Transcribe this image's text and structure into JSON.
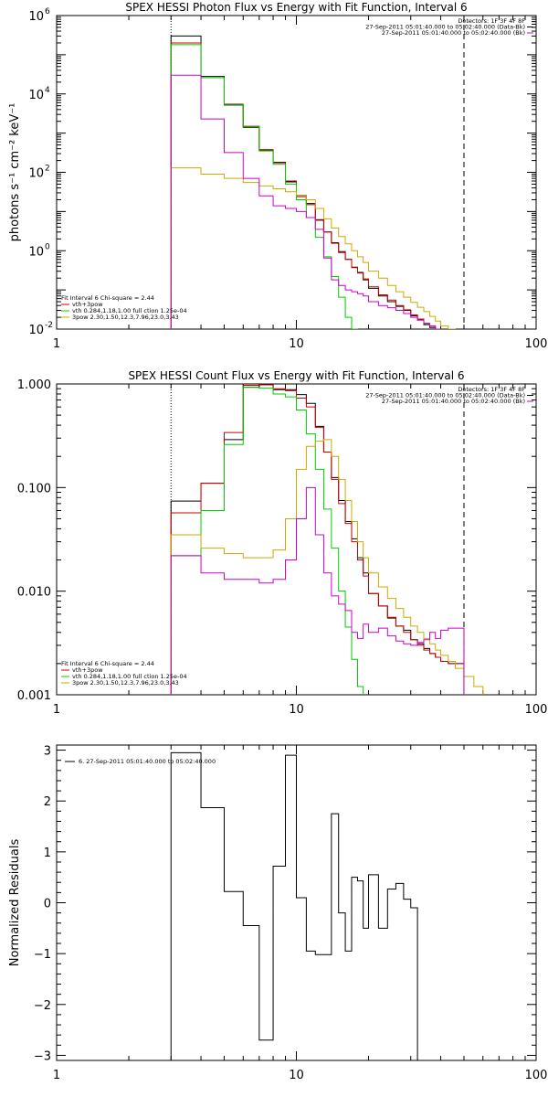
{
  "chart_data": [
    {
      "type": "line",
      "title": "SPEX HESSI Photon Flux vs Energy with Fit Function, Interval 6",
      "xlabel": "",
      "ylabel": "photons s⁻¹ cm⁻² keV⁻¹",
      "xscale": "log",
      "yscale": "log",
      "xlim": [
        1,
        100
      ],
      "ylim": [
        0.01,
        1000000
      ],
      "x_ticks": [
        {
          "v": 1,
          "label": "1"
        },
        {
          "v": 10,
          "label": "10"
        },
        {
          "v": 100,
          "label": "100"
        }
      ],
      "y_ticks": [
        {
          "v": 0.01,
          "label": "10",
          "exp": "-2"
        },
        {
          "v": 1,
          "label": "10",
          "exp": "0"
        },
        {
          "v": 100,
          "label": "10",
          "exp": "2"
        },
        {
          "v": 10000,
          "label": "10",
          "exp": "4"
        },
        {
          "v": 1000000,
          "label": "10",
          "exp": "6"
        }
      ],
      "vlines": [
        {
          "x": 3,
          "style": "dotted"
        },
        {
          "x": 50,
          "style": "dashed"
        }
      ],
      "legend_top": {
        "placement": "top-right",
        "lines": [
          "Detectors: 1F 3F 4F 8F",
          "27-Sep-2011 05:01:40.000 to 05:02:40.000 (Data-Bk)",
          "27-Sep-2011 05:01:40.000 to 05:02:40.000 (Bk)"
        ],
        "colors": [
          "#000000",
          "#000000",
          "#cc00cc"
        ]
      },
      "legend_bottom": {
        "placement": "bottom-left",
        "lines": [
          "Fit Interval 6   Chi-square = 2.44",
          "vth+3pow",
          "vth 0.284,1.18,1.00  full ction 1.25e-04",
          "3pow 2.30,1.50,12.3,7.96,23.0,3.43"
        ],
        "colors": [
          "#000000",
          "#cc0000",
          "#00cc00",
          "#ccaa00"
        ]
      },
      "edges": [
        3,
        4,
        5,
        6,
        7,
        8,
        9,
        10,
        11,
        12,
        13,
        14,
        15,
        16,
        17,
        18,
        19,
        20,
        22,
        24,
        26,
        28,
        30,
        32,
        34,
        36,
        38,
        40,
        43,
        46,
        50,
        55,
        60
      ],
      "series": [
        {
          "name": "Data-Bk",
          "color": "#000000",
          "values": [
            300000,
            28000,
            5200,
            1400,
            360,
            180,
            57,
            26,
            16,
            6.0,
            3.0,
            1.6,
            0.95,
            0.6,
            0.38,
            0.28,
            0.18,
            0.11,
            0.07,
            0.05,
            0.038,
            0.03,
            0.022,
            0.017,
            0.013,
            0.011,
            0.01,
            null,
            null,
            null,
            null,
            null
          ]
        },
        {
          "name": "vth+3pow",
          "color": "#cc0000",
          "values": [
            200000,
            26000,
            5500,
            1500,
            380,
            175,
            60,
            24,
            15,
            6.2,
            3.0,
            1.55,
            0.9,
            0.6,
            0.37,
            0.27,
            0.19,
            0.12,
            0.075,
            0.055,
            0.04,
            0.031,
            0.023,
            0.018,
            0.014,
            0.012,
            0.01,
            null,
            null,
            null,
            null,
            null
          ]
        },
        {
          "name": "vth",
          "color": "#00cc00",
          "values": [
            180000,
            26000,
            5400,
            1450,
            350,
            160,
            50,
            20,
            7,
            2.2,
            0.7,
            0.22,
            0.065,
            0.02,
            0.01,
            null,
            null,
            null,
            null,
            null,
            null,
            null,
            null,
            null,
            null,
            null,
            null,
            null,
            null,
            null,
            null,
            null
          ]
        },
        {
          "name": "3pow",
          "color": "#ccaa00",
          "values": [
            130,
            90,
            70,
            55,
            45,
            38,
            32,
            26,
            20,
            12,
            6.5,
            3.8,
            2.3,
            1.5,
            1.0,
            0.7,
            0.5,
            0.3,
            0.2,
            0.13,
            0.09,
            0.065,
            0.048,
            0.036,
            0.028,
            0.021,
            0.016,
            0.012,
            0.01,
            null,
            null,
            null
          ]
        },
        {
          "name": "Bk",
          "color": "#cc00cc",
          "values": [
            30000,
            2300,
            320,
            70,
            25,
            14,
            12,
            10,
            7,
            3.5,
            0.65,
            0.18,
            0.13,
            0.1,
            0.09,
            0.08,
            0.07,
            0.05,
            0.04,
            0.035,
            0.03,
            0.025,
            0.02,
            0.017,
            0.014,
            0.012,
            0.01,
            null,
            null,
            null,
            null,
            null
          ]
        }
      ]
    },
    {
      "type": "line",
      "title": "SPEX HESSI Count Flux vs Energy with Fit Function, Interval 6",
      "xlabel": "",
      "ylabel": "",
      "xscale": "log",
      "yscale": "log",
      "xlim": [
        1,
        100
      ],
      "ylim": [
        0.001,
        1.0
      ],
      "x_ticks": [
        {
          "v": 1,
          "label": "1"
        },
        {
          "v": 10,
          "label": "10"
        },
        {
          "v": 100,
          "label": "100"
        }
      ],
      "y_ticks": [
        {
          "v": 0.001,
          "label": "0.001"
        },
        {
          "v": 0.01,
          "label": "0.010"
        },
        {
          "v": 0.1,
          "label": "0.100"
        },
        {
          "v": 1,
          "label": "1.000"
        }
      ],
      "vlines": [
        {
          "x": 3,
          "style": "dotted"
        },
        {
          "x": 50,
          "style": "dashed"
        }
      ],
      "legend_top": {
        "placement": "top-right",
        "lines": [
          "Detectors: 1F 3F 4F 8F",
          "27-Sep-2011 05:01:40.000 to 05:02:40.000 (Data-Bk)",
          "27-Sep-2011 05:01:40.000 to 05:02:40.000 (Bk)"
        ],
        "colors": [
          "#000000",
          "#000000",
          "#cc00cc"
        ]
      },
      "legend_bottom": {
        "placement": "bottom-left",
        "lines": [
          "Fit Interval 6   Chi-square = 2.44",
          "vth+3pow",
          "vth 0.284,1.18,1.00  full ction 1.25e-04",
          "3pow 2.30,1.50,12.3,7.96,23.0,3.43"
        ],
        "colors": [
          "#000000",
          "#cc0000",
          "#00cc00",
          "#ccaa00"
        ]
      },
      "edges": [
        3,
        4,
        5,
        6,
        7,
        8,
        9,
        10,
        11,
        12,
        13,
        14,
        15,
        16,
        17,
        18,
        19,
        20,
        22,
        24,
        26,
        28,
        30,
        32,
        34,
        36,
        38,
        40,
        43,
        46,
        50,
        55,
        60
      ],
      "series": [
        {
          "name": "Data-Bk",
          "color": "#000000",
          "values": [
            0.074,
            0.11,
            0.29,
            0.93,
            1.0,
            0.88,
            0.88,
            0.79,
            0.65,
            0.39,
            0.22,
            0.125,
            0.075,
            0.047,
            0.032,
            0.021,
            0.015,
            0.0095,
            0.0072,
            0.0055,
            0.0046,
            0.0042,
            0.0034,
            0.0031,
            0.0028,
            0.0025,
            0.0023,
            0.0021,
            0.002,
            0.002,
            null,
            null
          ]
        },
        {
          "name": "vth+3pow",
          "color": "#cc0000",
          "values": [
            0.057,
            0.11,
            0.34,
            0.97,
            0.98,
            0.9,
            0.86,
            0.73,
            0.6,
            0.38,
            0.22,
            0.12,
            0.07,
            0.045,
            0.03,
            0.02,
            0.014,
            0.0095,
            0.0072,
            0.0056,
            0.0046,
            0.004,
            0.0034,
            0.003,
            0.0027,
            0.0025,
            0.0023,
            0.0021,
            0.002,
            0.002,
            null,
            null
          ]
        },
        {
          "name": "vth",
          "color": "#00cc00",
          "values": [
            0.022,
            0.06,
            0.26,
            0.93,
            0.91,
            0.8,
            0.75,
            0.56,
            0.33,
            0.15,
            0.062,
            0.026,
            0.01,
            0.0045,
            0.0022,
            0.0012,
            null,
            null,
            null,
            null,
            null,
            null,
            null,
            null,
            null,
            null,
            null,
            null,
            null,
            null,
            null,
            null
          ]
        },
        {
          "name": "3pow",
          "color": "#ccaa00",
          "values": [
            0.035,
            0.026,
            0.023,
            0.021,
            0.021,
            0.025,
            0.05,
            0.15,
            0.25,
            0.28,
            0.29,
            0.2,
            0.12,
            0.075,
            0.047,
            0.03,
            0.021,
            0.015,
            0.011,
            0.0085,
            0.0068,
            0.0056,
            0.0046,
            0.004,
            0.0035,
            0.0031,
            0.0027,
            0.0024,
            0.0021,
            0.0018,
            0.0015,
            0.0012
          ]
        },
        {
          "name": "Bk",
          "color": "#cc00cc",
          "values": [
            0.022,
            0.015,
            0.013,
            0.013,
            0.012,
            0.013,
            0.02,
            0.05,
            0.1,
            0.035,
            0.015,
            0.009,
            0.0075,
            0.0065,
            0.004,
            0.0035,
            0.0048,
            0.004,
            0.0044,
            0.0037,
            0.0033,
            0.0031,
            0.003,
            0.0032,
            0.0034,
            0.004,
            0.0035,
            0.0042,
            0.0044,
            0.0044,
            null,
            null
          ]
        }
      ]
    },
    {
      "type": "line",
      "title": "",
      "xlabel": "",
      "ylabel": "Normalized Residuals",
      "xscale": "log",
      "yscale": "linear",
      "xlim": [
        1,
        100
      ],
      "ylim": [
        -3.1,
        3.1
      ],
      "x_ticks": [
        {
          "v": 1,
          "label": "1"
        },
        {
          "v": 10,
          "label": "10"
        },
        {
          "v": 100,
          "label": "100"
        }
      ],
      "y_ticks": [
        {
          "v": -3,
          "label": "−3"
        },
        {
          "v": -2,
          "label": "−2"
        },
        {
          "v": -1,
          "label": "−1"
        },
        {
          "v": 0,
          "label": "0"
        },
        {
          "v": 1,
          "label": "1"
        },
        {
          "v": 2,
          "label": "2"
        },
        {
          "v": 3,
          "label": "3"
        }
      ],
      "legend_top": {
        "placement": "top-left",
        "lines": [
          "6. 27-Sep-2011 05:01:40.000 to 05:02:40.000"
        ],
        "colors": [
          "#000000"
        ]
      },
      "edges": [
        3,
        4,
        5,
        6,
        7,
        8,
        9,
        10,
        11,
        12,
        13,
        14,
        15,
        16,
        17,
        18,
        19,
        20,
        22,
        24,
        26,
        28,
        30,
        32,
        34,
        36,
        38,
        40,
        43,
        46,
        50
      ],
      "series": [
        {
          "name": "residuals",
          "color": "#000000",
          "values": [
            2.95,
            1.87,
            0.22,
            -0.45,
            -2.7,
            0.72,
            2.9,
            0.1,
            -0.95,
            -1.02,
            -1.02,
            1.75,
            -0.2,
            -0.95,
            0.5,
            0.43,
            -0.5,
            0.55,
            -0.5,
            0.27,
            0.38,
            0.07,
            -0.1,
            null,
            null,
            null,
            null,
            null,
            null,
            null
          ]
        }
      ]
    }
  ]
}
